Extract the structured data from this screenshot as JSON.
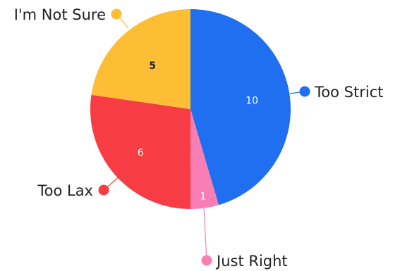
{
  "chart_data": {
    "type": "pie",
    "slices": [
      {
        "label": "Too Strict",
        "value": 10,
        "color": "#1f6ff0"
      },
      {
        "label": "Just Right",
        "value": 1,
        "color": "#f87eb4"
      },
      {
        "label": "Too Lax",
        "value": 6,
        "color": "#f73c43"
      },
      {
        "label": "I'm Not Sure",
        "value": 5,
        "color": "#fdbe35"
      }
    ],
    "start": "top",
    "direction": "clockwise",
    "legend": "callout labels around the pie"
  }
}
